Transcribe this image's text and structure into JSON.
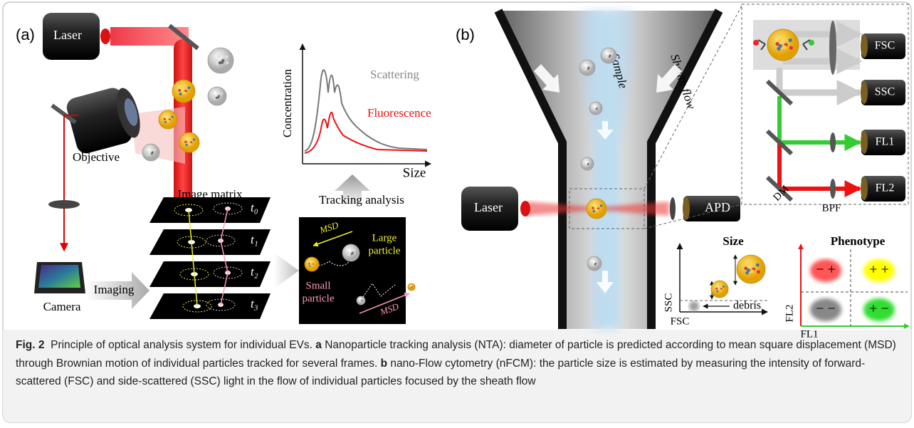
{
  "panel_a": {
    "label": "(a)",
    "laser": "Laser",
    "objective": "Objective",
    "camera": "Camera",
    "imaging": "Imaging",
    "image_matrix": "Image matrix",
    "frames": [
      "t₀",
      "t₁",
      "t₂",
      "t₃"
    ],
    "plot": {
      "y_label": "Concentration",
      "x_label": "Size",
      "scattering": "Scattering",
      "fluorescence": "Fluorescence"
    },
    "tracking": "Tracking analysis",
    "tracking_view": {
      "msd_large": "MSD",
      "large_particle": [
        "Large",
        "particle"
      ],
      "small_particle": [
        "Small",
        "particle"
      ],
      "msd_small": "MSD"
    }
  },
  "panel_b": {
    "label": "(b)",
    "sample": "Sample",
    "sheath_flow": "Sheath flow",
    "laser": "Laser",
    "apd": "APD",
    "detectors": [
      "FSC",
      "SSC",
      "FL1",
      "FL2"
    ],
    "dm": "DM",
    "bpf": "BPF",
    "size_plot": {
      "title": "Size",
      "y_label": "SSC",
      "x_label": "FSC",
      "debris": "debris"
    },
    "phenotype_plot": {
      "title": "Phenotype",
      "y_label": "FL2",
      "x_label": "FL1",
      "quadrants": [
        "− +",
        "+ +",
        "− −",
        "+ −"
      ]
    }
  },
  "caption": {
    "figure_label": "Fig. 2",
    "intro": "Principle of optical analysis system for individual EVs.",
    "a_label": "a",
    "a_text": "Nanoparticle tracking analysis (NTA): diameter of particle is predicted according to mean square displacement (MSD) through Brownian motion of individual particles tracked for several frames.",
    "b_label": "b",
    "b_text": "nano-Flow cytometry (nFCM): the particle size is estimated by measuring the intensity of forward-scattered (FSC) and side-scattered (SSC) light in the flow of individual particles focused by the sheath flow"
  }
}
